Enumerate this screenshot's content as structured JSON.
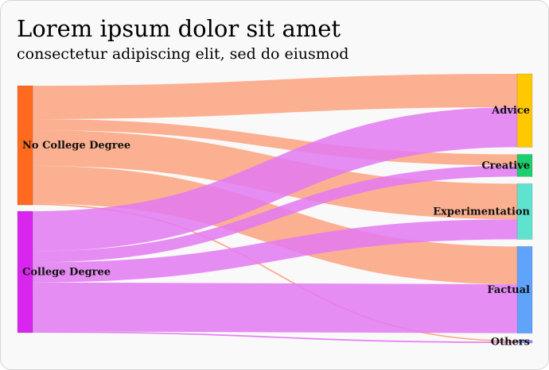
{
  "header": {
    "title": "Lorem ipsum dolor sit amet",
    "subtitle": "consectetur adipiscing elit, sed do eiusmod"
  },
  "chart_data": {
    "type": "sankey",
    "title": "Lorem ipsum dolor sit amet",
    "subtitle": "consectetur adipiscing elit, sed do eiusmod",
    "sources": [
      {
        "name": "No College Degree",
        "color": "#ff6a1f"
      },
      {
        "name": "College Degree",
        "color": "#d926ee"
      }
    ],
    "targets": [
      {
        "name": "Advice",
        "color": "#ffc800"
      },
      {
        "name": "Creative",
        "color": "#1ccf6e"
      },
      {
        "name": "Experimentation",
        "color": "#5fe3cf"
      },
      {
        "name": "Factual",
        "color": "#60a3fb"
      },
      {
        "name": "Others",
        "color": "#8e8cf6"
      }
    ],
    "link_colors": {
      "No College Degree": "#fba37f",
      "College Degree": "#e37af2"
    },
    "links": [
      {
        "source": "No College Degree",
        "target": "Advice",
        "value": 15
      },
      {
        "source": "No College Degree",
        "target": "Creative",
        "value": 5
      },
      {
        "source": "No College Degree",
        "target": "Experimentation",
        "value": 16
      },
      {
        "source": "No College Degree",
        "target": "Factual",
        "value": 17
      },
      {
        "source": "No College Degree",
        "target": "Others",
        "value": 0.6
      },
      {
        "source": "College Degree",
        "target": "Advice",
        "value": 18
      },
      {
        "source": "College Degree",
        "target": "Creative",
        "value": 5
      },
      {
        "source": "College Degree",
        "target": "Experimentation",
        "value": 9
      },
      {
        "source": "College Degree",
        "target": "Factual",
        "value": 22
      },
      {
        "source": "College Degree",
        "target": "Others",
        "value": 0.6
      }
    ]
  }
}
